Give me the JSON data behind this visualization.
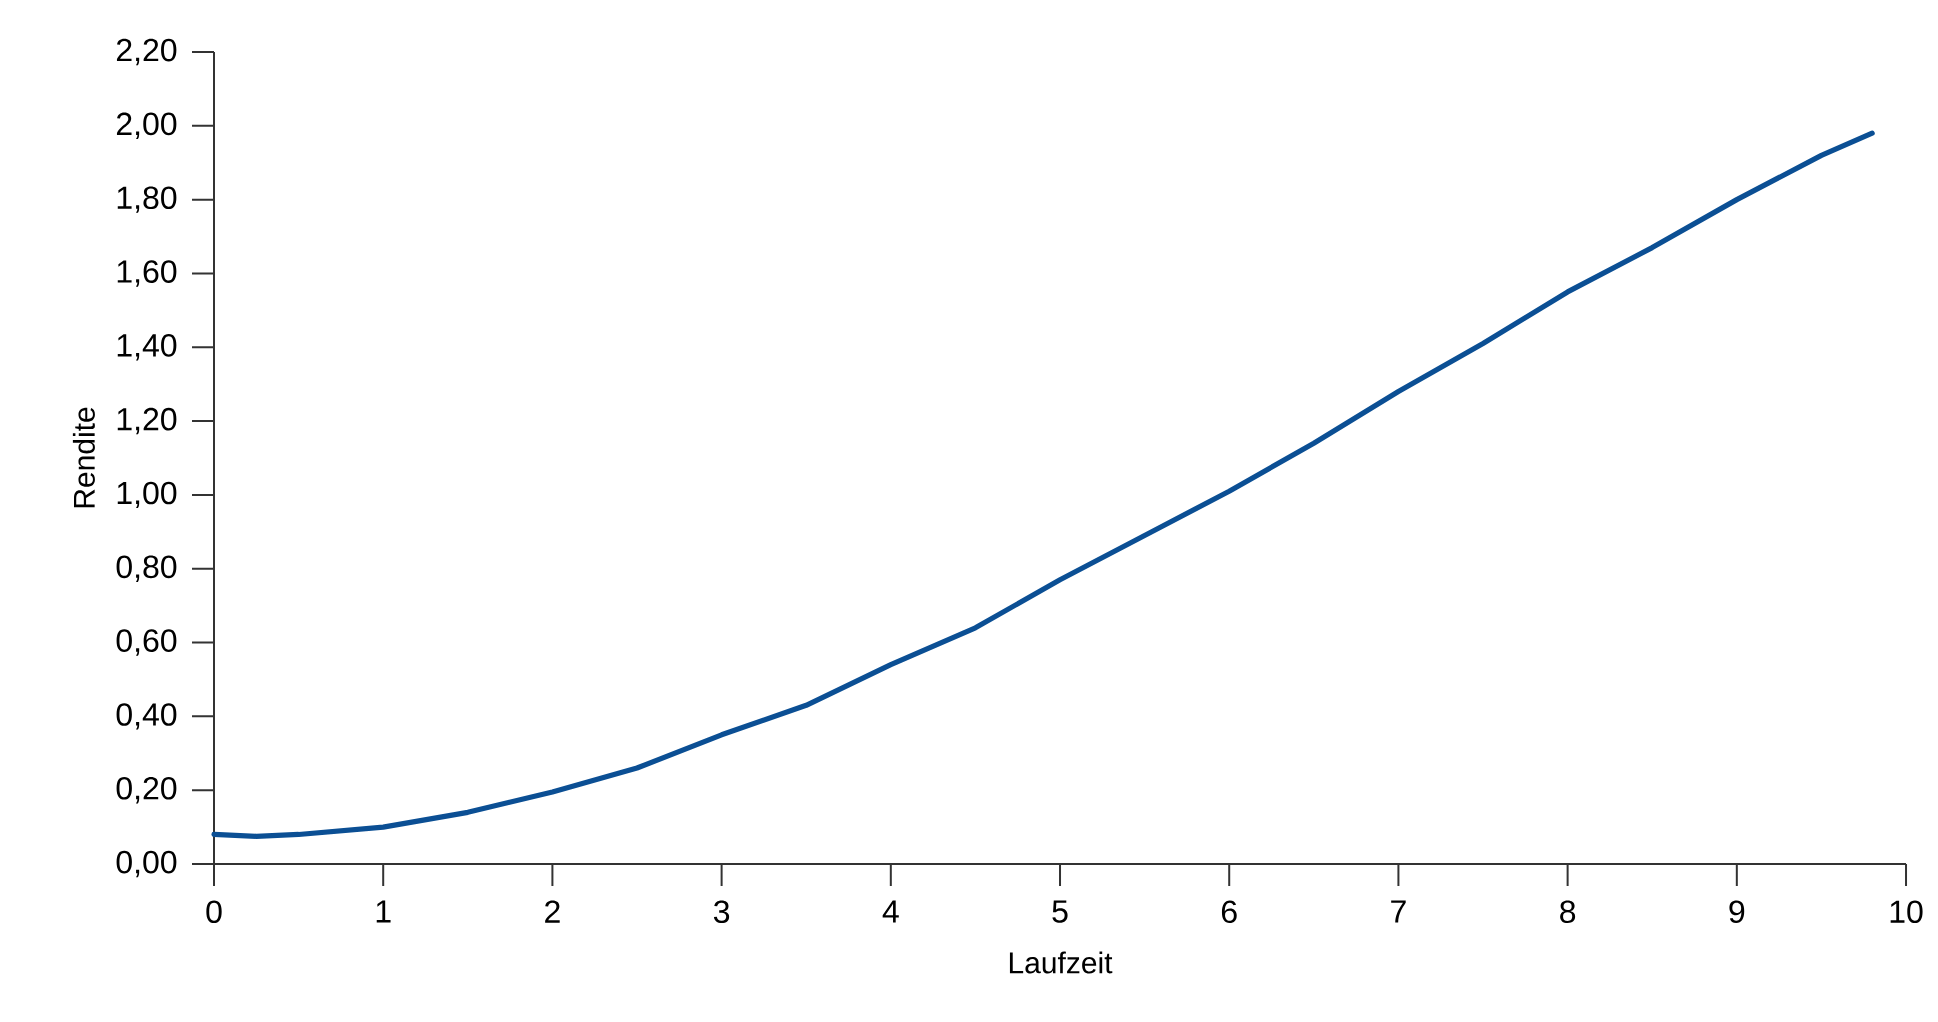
{
  "chart_data": {
    "type": "line",
    "xlabel": "Laufzeit",
    "ylabel": "Rendite",
    "xlim": [
      0,
      10
    ],
    "ylim": [
      0,
      2.2
    ],
    "xticks": [
      0,
      1,
      2,
      3,
      4,
      5,
      6,
      7,
      8,
      9,
      10
    ],
    "yticks": [
      {
        "value": 0,
        "label": "0,00"
      },
      {
        "value": 0.2,
        "label": "0,20"
      },
      {
        "value": 0.4,
        "label": "0,40"
      },
      {
        "value": 0.6,
        "label": "0,60"
      },
      {
        "value": 0.8,
        "label": "0,80"
      },
      {
        "value": 1,
        "label": "1,00"
      },
      {
        "value": 1.2,
        "label": "1,20"
      },
      {
        "value": 1.4,
        "label": "1,40"
      },
      {
        "value": 1.6,
        "label": "1,60"
      },
      {
        "value": 1.8,
        "label": "1,80"
      },
      {
        "value": 2,
        "label": "2,00"
      },
      {
        "value": 2.2,
        "label": "2,20"
      }
    ],
    "grid": false,
    "marker": "none",
    "line_style": "solid",
    "x": [
      0,
      0.25,
      0.5,
      1,
      1.5,
      2,
      2.5,
      3,
      3.5,
      4,
      4.5,
      5,
      5.5,
      6,
      6.5,
      7,
      7.5,
      8,
      8.5,
      9,
      9.5,
      9.8
    ],
    "series": [
      {
        "color": "#0b4f94",
        "values": [
          0.08,
          0.075,
          0.08,
          0.1,
          0.14,
          0.195,
          0.26,
          0.35,
          0.43,
          0.54,
          0.64,
          0.77,
          0.89,
          1.01,
          1.14,
          1.28,
          1.41,
          1.55,
          1.67,
          1.8,
          1.92,
          1.98
        ]
      }
    ]
  }
}
